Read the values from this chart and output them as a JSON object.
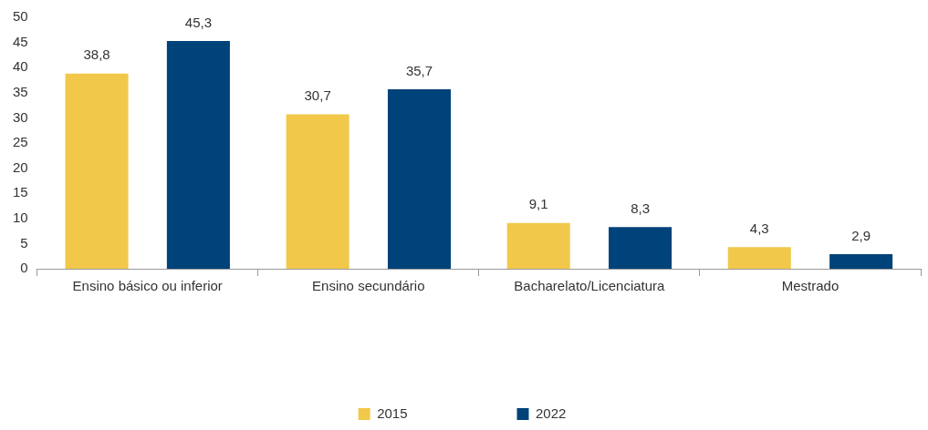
{
  "chart_data": {
    "type": "bar",
    "categories": [
      "Ensino básico ou inferior",
      "Ensino secundário",
      "Bacharelato/Licenciatura",
      "Mestrado"
    ],
    "series": [
      {
        "name": "2015",
        "color": "#f2c84b",
        "values": [
          38.8,
          30.7,
          9.1,
          4.3
        ],
        "value_labels": [
          "38,8",
          "30,7",
          "9,1",
          "4,3"
        ]
      },
      {
        "name": "2022",
        "color": "#00427a",
        "values": [
          45.3,
          35.7,
          8.3,
          2.9
        ],
        "value_labels": [
          "45,3",
          "35,7",
          "8,3",
          "2,9"
        ]
      }
    ],
    "ylim": [
      0,
      50
    ],
    "yticks": [
      0,
      5,
      10,
      15,
      20,
      25,
      30,
      35,
      40,
      45,
      50
    ],
    "grid": false,
    "legend": "bottom"
  }
}
